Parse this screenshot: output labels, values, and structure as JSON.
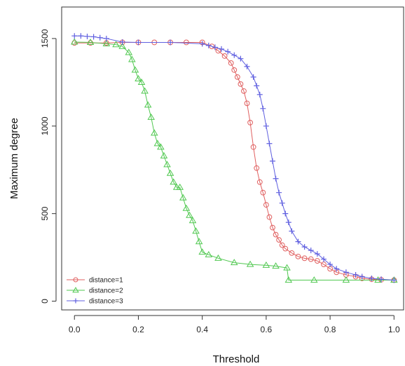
{
  "chart_data": {
    "type": "line",
    "title": "",
    "xlabel": "Threshold",
    "ylabel": "Maximum degree",
    "xlim": [
      -0.04,
      1.03
    ],
    "ylim": [
      -50,
      1680
    ],
    "xticks": [
      0.0,
      0.2,
      0.4,
      0.6,
      0.8,
      1.0
    ],
    "xtick_labels": [
      "0.0",
      "0.2",
      "0.4",
      "0.6",
      "0.8",
      "1.0"
    ],
    "yticks": [
      0,
      500,
      1000,
      1500
    ],
    "ytick_labels": [
      "0",
      "500",
      "1000",
      "1500"
    ],
    "grid": false,
    "legend_position": "bottom-left",
    "series": [
      {
        "name": "distance=1",
        "color": "#e06060",
        "marker": "circle",
        "x": [
          0.0,
          0.05,
          0.1,
          0.15,
          0.2,
          0.25,
          0.3,
          0.35,
          0.4,
          0.43,
          0.45,
          0.47,
          0.49,
          0.5,
          0.51,
          0.52,
          0.53,
          0.54,
          0.55,
          0.56,
          0.57,
          0.58,
          0.59,
          0.6,
          0.61,
          0.62,
          0.63,
          0.64,
          0.65,
          0.66,
          0.68,
          0.7,
          0.72,
          0.74,
          0.76,
          0.78,
          0.8,
          0.82,
          0.85,
          0.88,
          0.9,
          0.93,
          0.96,
          1.0
        ],
        "y": [
          1475,
          1475,
          1475,
          1478,
          1478,
          1478,
          1478,
          1478,
          1478,
          1455,
          1430,
          1400,
          1360,
          1320,
          1280,
          1240,
          1200,
          1130,
          1020,
          880,
          760,
          680,
          620,
          550,
          480,
          420,
          380,
          350,
          320,
          300,
          275,
          255,
          245,
          240,
          230,
          210,
          185,
          165,
          150,
          140,
          130,
          125,
          122,
          120
        ]
      },
      {
        "name": "distance=2",
        "color": "#50c850",
        "marker": "triangle",
        "x": [
          0.0,
          0.05,
          0.1,
          0.13,
          0.15,
          0.17,
          0.18,
          0.19,
          0.2,
          0.21,
          0.22,
          0.23,
          0.24,
          0.25,
          0.26,
          0.27,
          0.28,
          0.29,
          0.3,
          0.31,
          0.32,
          0.33,
          0.34,
          0.35,
          0.36,
          0.37,
          0.38,
          0.39,
          0.4,
          0.42,
          0.45,
          0.5,
          0.55,
          0.6,
          0.63,
          0.665,
          0.67,
          0.75,
          0.85,
          0.95,
          1.0
        ],
        "y": [
          1480,
          1478,
          1470,
          1465,
          1455,
          1420,
          1380,
          1320,
          1270,
          1250,
          1200,
          1120,
          1050,
          960,
          900,
          880,
          830,
          780,
          730,
          680,
          650,
          650,
          590,
          530,
          490,
          460,
          400,
          340,
          280,
          265,
          245,
          220,
          210,
          205,
          200,
          190,
          120,
          120,
          120,
          120,
          120
        ]
      },
      {
        "name": "distance=3",
        "color": "#6060e0",
        "marker": "plus",
        "x": [
          0.0,
          0.02,
          0.04,
          0.06,
          0.08,
          0.1,
          0.15,
          0.2,
          0.3,
          0.4,
          0.42,
          0.44,
          0.46,
          0.48,
          0.5,
          0.52,
          0.54,
          0.56,
          0.57,
          0.58,
          0.59,
          0.6,
          0.61,
          0.62,
          0.63,
          0.64,
          0.65,
          0.66,
          0.67,
          0.68,
          0.7,
          0.72,
          0.74,
          0.76,
          0.78,
          0.8,
          0.82,
          0.85,
          0.88,
          0.9,
          0.93,
          0.96,
          1.0
        ],
        "y": [
          1515,
          1515,
          1512,
          1510,
          1505,
          1500,
          1480,
          1478,
          1478,
          1470,
          1460,
          1450,
          1440,
          1425,
          1405,
          1385,
          1340,
          1280,
          1230,
          1180,
          1100,
          1000,
          900,
          800,
          700,
          620,
          560,
          500,
          450,
          400,
          340,
          310,
          290,
          270,
          240,
          210,
          185,
          165,
          150,
          140,
          130,
          125,
          120
        ]
      }
    ]
  }
}
